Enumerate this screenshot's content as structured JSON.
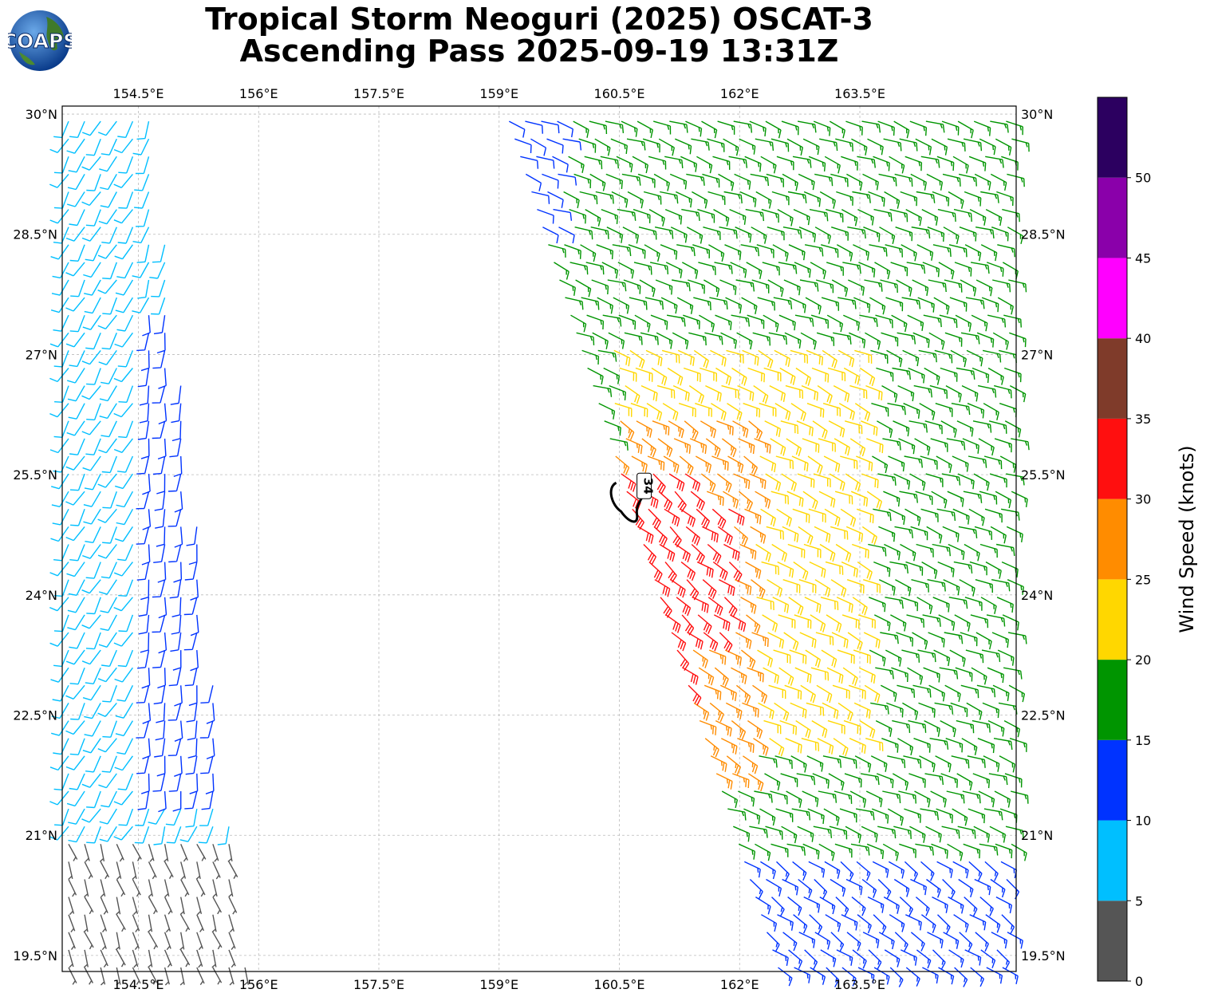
{
  "logo": {
    "text": "COAPS"
  },
  "title": {
    "line1": "Tropical Storm Neoguri (2025) OSCAT-3",
    "line2": "Ascending Pass 2025-09-19 13:31Z"
  },
  "colors": {
    "gridline": "#bbbbbb",
    "wind_isotach": "#000000"
  },
  "chart_data": {
    "type": "scatter",
    "subtype": "wind barbs on lat/lon map",
    "lon_range": [
      153.55,
      165.45
    ],
    "lat_range": [
      19.3,
      30.1
    ],
    "x_ticks": [
      {
        "value": 154.5,
        "label": "154.5°E"
      },
      {
        "value": 156.0,
        "label": "156°E"
      },
      {
        "value": 157.5,
        "label": "157.5°E"
      },
      {
        "value": 159.0,
        "label": "159°E"
      },
      {
        "value": 160.5,
        "label": "160.5°E"
      },
      {
        "value": 162.0,
        "label": "162°E"
      },
      {
        "value": 163.5,
        "label": "163.5°E"
      }
    ],
    "y_ticks": [
      {
        "value": 30.0,
        "label": "30°N"
      },
      {
        "value": 28.5,
        "label": "28.5°N"
      },
      {
        "value": 27.0,
        "label": "27°N"
      },
      {
        "value": 25.5,
        "label": "25.5°N"
      },
      {
        "value": 24.0,
        "label": "24°N"
      },
      {
        "value": 22.5,
        "label": "22.5°N"
      },
      {
        "value": 21.0,
        "label": "21°N"
      },
      {
        "value": 19.5,
        "label": "19.5°N"
      }
    ],
    "grid": true,
    "colorbar": {
      "label": "Wind Speed (knots)",
      "ticks": [
        0,
        5,
        10,
        15,
        20,
        25,
        30,
        35,
        40,
        45,
        50
      ],
      "tick_labels": [
        "0",
        "5",
        "10",
        "15",
        "20",
        "25",
        "30",
        "35",
        "40",
        "45",
        "50"
      ],
      "bins": [
        {
          "from": 0,
          "to": 5,
          "color": "#555555"
        },
        {
          "from": 5,
          "to": 10,
          "color": "#00bfff"
        },
        {
          "from": 10,
          "to": 15,
          "color": "#0033ff"
        },
        {
          "from": 15,
          "to": 20,
          "color": "#009500"
        },
        {
          "from": 20,
          "to": 25,
          "color": "#ffd700"
        },
        {
          "from": 25,
          "to": 30,
          "color": "#ff8c00"
        },
        {
          "from": 30,
          "to": 35,
          "color": "#ff0f0f"
        },
        {
          "from": 35,
          "to": 40,
          "color": "#7f3b2a"
        },
        {
          "from": 40,
          "to": 45,
          "color": "#ff00ff"
        },
        {
          "from": 45,
          "to": 50,
          "color": "#8a00aa"
        },
        {
          "from": 50,
          "to": 55,
          "color": "#2c0060"
        }
      ],
      "vmax": 55
    },
    "contour": {
      "level": 34,
      "label": "34",
      "center_lon": 160.7,
      "center_lat": 25.3
    },
    "swaths": [
      {
        "name": "west swath",
        "lat_start": 19.35,
        "lat_end": 30.0,
        "west_edge_at_start": 153.55,
        "west_edge_at_end": 153.55,
        "east_edge_at_start": 155.9,
        "east_edge_at_end": 154.7,
        "regions": [
          {
            "lat_min": 19.3,
            "lat_max": 21.1,
            "lon_min": 153.55,
            "lon_max": 156.0,
            "speed": 3,
            "direction_deg": 160
          },
          {
            "lat_min": 19.3,
            "lat_max": 20.6,
            "lon_min": 153.55,
            "lon_max": 154.4,
            "speed": 7,
            "direction_deg": 70
          },
          {
            "lat_min": 21.1,
            "lat_max": 30.0,
            "lon_min": 153.55,
            "lon_max": 154.6,
            "speed": 8,
            "direction_deg": 210
          },
          {
            "lat_min": 21.5,
            "lat_max": 27.5,
            "lon_min": 154.6,
            "lon_max": 155.8,
            "speed": 12,
            "direction_deg": 185
          }
        ],
        "default_speed": 8,
        "default_direction_deg": 200
      },
      {
        "name": "east swath",
        "lat_start": 19.35,
        "lat_end": 30.05,
        "west_edge_at_start": 162.4,
        "west_edge_at_end": 159.0,
        "east_edge_at_start": 165.45,
        "east_edge_at_end": 165.45,
        "regions": [
          {
            "lat_min": 22.6,
            "lat_max": 25.6,
            "lon_min": 160.5,
            "lon_max": 161.4,
            "speed": 32,
            "direction_deg": 130
          },
          {
            "lat_min": 23.5,
            "lat_max": 25.2,
            "lon_min": 161.4,
            "lon_max": 161.9,
            "speed": 31,
            "direction_deg": 125
          },
          {
            "lat_min": 21.7,
            "lat_max": 26.3,
            "lon_min": 160.4,
            "lon_max": 162.2,
            "speed": 27,
            "direction_deg": 120
          },
          {
            "lat_min": 22.0,
            "lat_max": 27.2,
            "lon_min": 160.4,
            "lon_max": 163.6,
            "speed": 22,
            "direction_deg": 115
          },
          {
            "lat_min": 20.7,
            "lat_max": 30.1,
            "lon_min": 159.8,
            "lon_max": 165.45,
            "speed": 17,
            "direction_deg": 110
          },
          {
            "lat_min": 19.3,
            "lat_max": 22.6,
            "lon_min": 161.9,
            "lon_max": 165.45,
            "speed": 13,
            "direction_deg": 125
          },
          {
            "lat_min": 28.4,
            "lat_max": 30.1,
            "lon_min": 159.0,
            "lon_max": 162.0,
            "speed": 12,
            "direction_deg": 110
          }
        ],
        "default_speed": 17,
        "default_direction_deg": 115
      }
    ]
  }
}
